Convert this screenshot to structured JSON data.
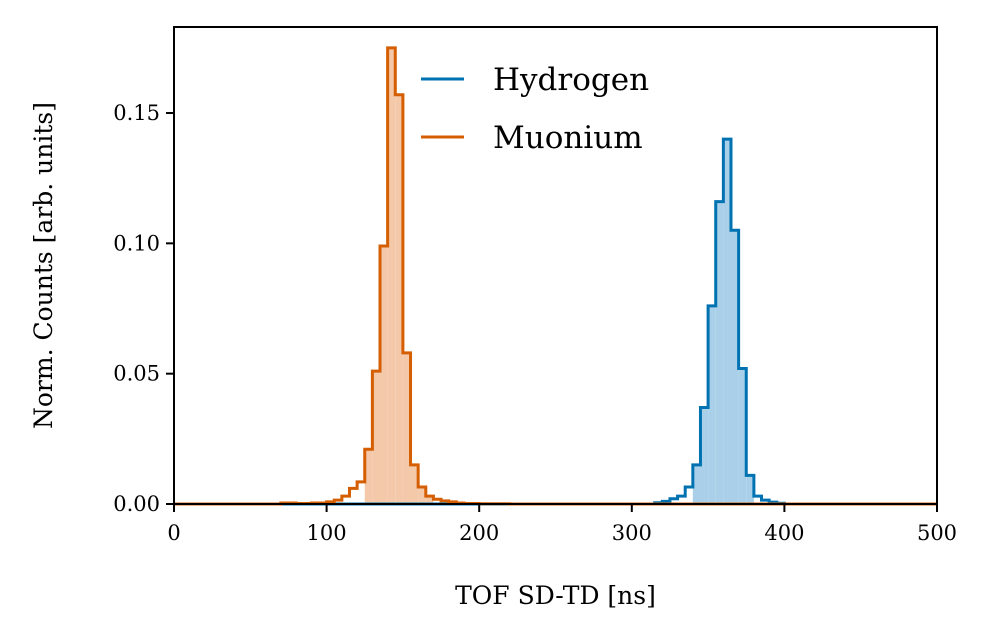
{
  "chart_data": {
    "type": "histogram",
    "title": "",
    "xlabel": "TOF SD-TD [ns]",
    "ylabel": "Norm. Counts [arb. units]",
    "xlim": [
      0,
      500
    ],
    "ylim": [
      0,
      0.183
    ],
    "xticks": [
      0,
      100,
      200,
      300,
      400,
      500
    ],
    "xtick_labels": [
      "0",
      "100",
      "200",
      "300",
      "400",
      "500"
    ],
    "yticks": [
      0.0,
      0.05,
      0.1,
      0.15
    ],
    "ytick_labels": [
      "0.00",
      "0.05",
      "0.10",
      "0.15"
    ],
    "grid": false,
    "legend_position": "top-center",
    "bin_width": 5,
    "series": [
      {
        "name": "Hydrogen",
        "color": "#0072b2",
        "fill_color": "#a9d0e8",
        "fill_range": [
          340,
          380
        ],
        "bin_edges": [
          315,
          320,
          325,
          330,
          335,
          340,
          345,
          350,
          355,
          360,
          365,
          370,
          375,
          380,
          385,
          390,
          395,
          400
        ],
        "values": [
          0.0005,
          0.001,
          0.002,
          0.003,
          0.0065,
          0.015,
          0.037,
          0.076,
          0.116,
          0.14,
          0.105,
          0.052,
          0.011,
          0.003,
          0.0015,
          0.0007,
          0.0003
        ]
      },
      {
        "name": "Muonium",
        "color": "#d55e00",
        "fill_color": "#f4c9aa",
        "fill_range": [
          125,
          170
        ],
        "bin_edges": [
          70,
          80,
          90,
          100,
          105,
          110,
          115,
          120,
          125,
          130,
          135,
          140,
          145,
          150,
          155,
          160,
          165,
          170,
          175,
          180,
          185,
          190,
          200,
          220
        ],
        "values": [
          0.0004,
          0.0002,
          0.0004,
          0.0008,
          0.0015,
          0.003,
          0.006,
          0.0085,
          0.021,
          0.051,
          0.099,
          0.175,
          0.157,
          0.058,
          0.015,
          0.0065,
          0.003,
          0.0018,
          0.0012,
          0.0008,
          0.0004,
          0.0002,
          0.0001
        ]
      }
    ]
  }
}
